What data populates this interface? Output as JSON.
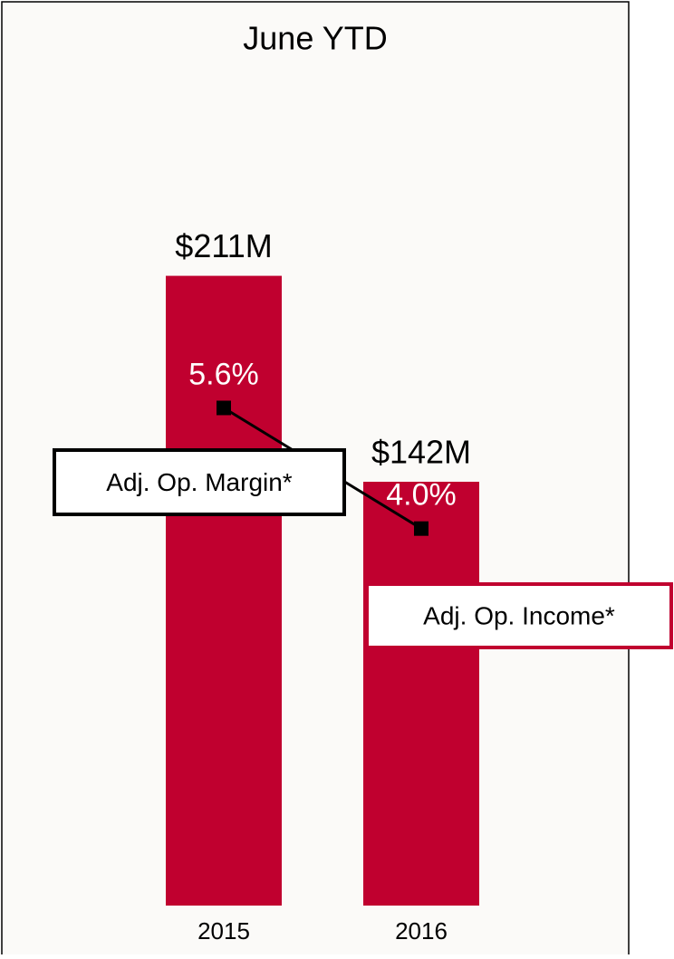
{
  "chart_data": {
    "type": "bar-line",
    "title": "June YTD",
    "categories": [
      "2015",
      "2016"
    ],
    "series": [
      {
        "name": "Adj. Op. Income*",
        "color": "#c0002f",
        "type": "bar",
        "values": [
          211,
          142
        ],
        "value_labels": [
          "$211M",
          "$142M"
        ]
      },
      {
        "name": "Adj. Op. Margin*",
        "color": "#000000",
        "type": "line",
        "axis": "y2",
        "values": [
          5.6,
          4.0
        ],
        "value_labels": [
          "5.6%",
          "4.0%"
        ]
      }
    ],
    "ylim": [
      0,
      240
    ],
    "y2lim": [
      -1,
      8.5
    ]
  }
}
